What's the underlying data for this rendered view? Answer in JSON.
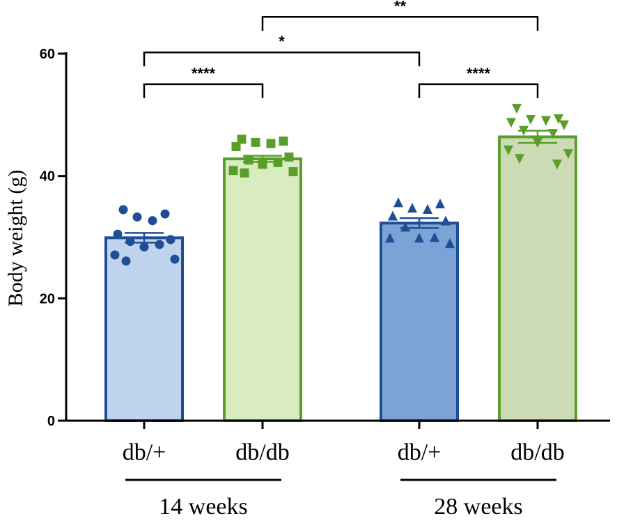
{
  "chart_data": {
    "type": "bar",
    "ylabel": "Body weight (g)",
    "xlabel": "",
    "ylim": [
      0,
      60
    ],
    "yticks": [
      0,
      20,
      40,
      60
    ],
    "grid": false,
    "categories": [
      "db/+",
      "db/db",
      "db/+",
      "db/db"
    ],
    "groups": [
      {
        "label": "14 weeks",
        "categories": [
          0,
          1
        ]
      },
      {
        "label": "28 weeks",
        "categories": [
          2,
          3
        ]
      }
    ],
    "bars": [
      {
        "category": "db/+",
        "group": "14 weeks",
        "mean": 29.9,
        "sem": 0.8,
        "fill": "#bfd3ec",
        "stroke": "#1f4e96",
        "marker": "circle",
        "marker_color": "#1f4e96",
        "points": [
          34.5,
          33.8,
          33.3,
          32.7,
          30.5,
          29.6,
          29.3,
          28.8,
          28.4,
          27.1,
          26.4,
          26.1
        ]
      },
      {
        "category": "db/db",
        "group": "14 weeks",
        "mean": 42.8,
        "sem": 0.5,
        "fill": "#d9ecc0",
        "stroke": "#5a9e2a",
        "marker": "square",
        "marker_color": "#5a9e2a",
        "points": [
          46.0,
          45.7,
          45.5,
          45.3,
          44.8,
          43.1,
          42.6,
          42.2,
          41.9,
          40.9,
          40.7,
          40.5
        ]
      },
      {
        "category": "db/+",
        "group": "28 weeks",
        "mean": 32.3,
        "sem": 0.8,
        "fill": "#7ba3d6",
        "stroke": "#1f4e96",
        "marker": "triangle-up",
        "marker_color": "#1f4e96",
        "points": [
          35.6,
          35.4,
          34.7,
          34.5,
          33.4,
          32.6,
          31.6,
          29.9,
          29.8,
          29.8,
          28.9
        ]
      },
      {
        "category": "db/db",
        "group": "28 weeks",
        "mean": 46.4,
        "sem": 1.0,
        "fill": "#ccdbb5",
        "stroke": "#5a9e2a",
        "marker": "triangle-down",
        "marker_color": "#5a9e2a",
        "points": [
          51.1,
          49.4,
          49.3,
          49.1,
          48.8,
          48.4,
          47.5,
          47.0,
          45.5,
          44.3,
          43.7,
          42.9,
          42.0
        ]
      }
    ],
    "significance": [
      {
        "from": 0,
        "to": 1,
        "y": 55.0,
        "label": "****"
      },
      {
        "from": 2,
        "to": 3,
        "y": 55.0,
        "label": "****"
      },
      {
        "from": 0,
        "to": 2,
        "y": 60.2,
        "label": "*"
      },
      {
        "from": 1,
        "to": 3,
        "y": 66.0,
        "label": "**"
      }
    ]
  }
}
